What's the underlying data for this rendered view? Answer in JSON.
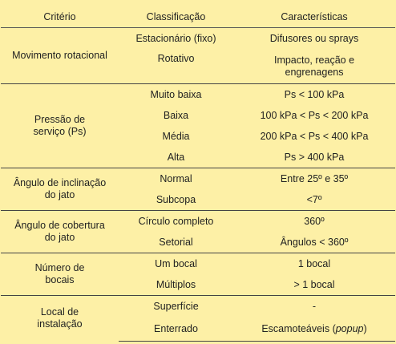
{
  "headers": [
    "Critério",
    "Classificação",
    "Características"
  ],
  "groups": [
    {
      "criterion": "Movimento rotacional",
      "rows": [
        {
          "classification": "Estacionário (fixo)",
          "characteristic": "Difusores ou sprays"
        },
        {
          "classification": "Rotativo",
          "characteristic": "Impacto, reação e engrenagens"
        }
      ]
    },
    {
      "criterion": "Pressão de serviço (Ps)",
      "rows": [
        {
          "classification": "Muito baixa",
          "characteristic": "Ps < 100 kPa"
        },
        {
          "classification": "Baixa",
          "characteristic": "100 kPa < Ps < 200 kPa"
        },
        {
          "classification": "Média",
          "characteristic": "200 kPa < Ps < 400 kPa"
        },
        {
          "classification": "Alta",
          "characteristic": "Ps > 400 kPa"
        }
      ]
    },
    {
      "criterion": "Ângulo de inclinação do jato",
      "rows": [
        {
          "classification": "Normal",
          "characteristic": "Entre 25º e 35º"
        },
        {
          "classification": "Subcopa",
          "characteristic": "<7º"
        }
      ]
    },
    {
      "criterion": "Ângulo de cobertura do jato",
      "rows": [
        {
          "classification": "Círculo completo",
          "characteristic": "360º"
        },
        {
          "classification": "Setorial",
          "characteristic": "Ângulos < 360º"
        }
      ]
    },
    {
      "criterion": "Número de bocais",
      "rows": [
        {
          "classification": "Um bocal",
          "characteristic": "1 bocal"
        },
        {
          "classification": "Múltiplos",
          "characteristic": "> 1 bocal"
        }
      ]
    },
    {
      "criterion": "Local de instalação",
      "rows": [
        {
          "classification": "Superfície",
          "characteristic": "-"
        },
        {
          "classification": "Enterrado",
          "characteristic": "Escamoteáveis",
          "characteristic_em": "popup"
        }
      ]
    }
  ]
}
